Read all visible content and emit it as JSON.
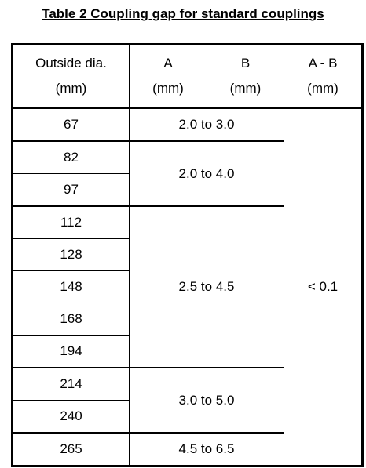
{
  "title": "Table 2 Coupling gap for standard couplings",
  "table": {
    "header": [
      [
        "Outside dia.",
        "(mm)"
      ],
      [
        "A",
        "(mm)"
      ],
      [
        "B",
        "(mm)"
      ],
      [
        "A - B",
        "(mm)"
      ]
    ],
    "groups": [
      {
        "diameters": [
          67
        ],
        "gap": "2.0 to 3.0"
      },
      {
        "diameters": [
          82,
          97
        ],
        "gap": "2.0 to 4.0"
      },
      {
        "diameters": [
          112,
          128,
          148,
          168,
          194
        ],
        "gap": "2.5 to 4.5"
      },
      {
        "diameters": [
          214,
          240
        ],
        "gap": "3.0 to 5.0"
      },
      {
        "diameters": [
          265
        ],
        "gap": "4.5 to 6.5"
      }
    ],
    "difference": "< 0.1"
  }
}
